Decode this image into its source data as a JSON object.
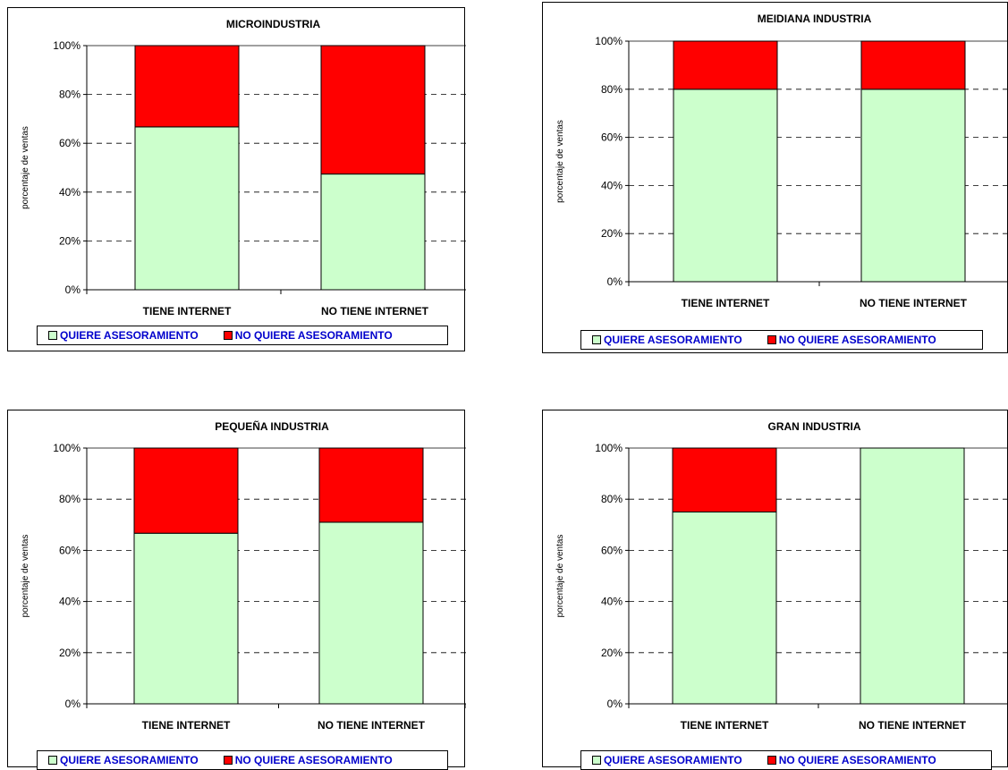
{
  "colors": {
    "quiere": "#ccffcc",
    "no_quiere": "#ff0000",
    "legend_text": "#0000cc"
  },
  "chart_data": [
    {
      "type": "bar",
      "stacked": true,
      "title": "MICROINDUSTRIA",
      "ylabel": "porcentaje de ventas",
      "categories": [
        "TIENE INTERNET",
        "NO TIENE INTERNET"
      ],
      "series": [
        {
          "name": "QUIERE ASESORAMIENTO",
          "values": [
            66.7,
            47.4
          ]
        },
        {
          "name": "NO QUIERE ASESORAMIENTO",
          "values": [
            33.3,
            52.6
          ]
        }
      ],
      "ylim": [
        0,
        100
      ],
      "yticks": [
        "0%",
        "20%",
        "40%",
        "60%",
        "80%",
        "100%"
      ],
      "grid": "dashed-horizontal",
      "legend": "bottom"
    },
    {
      "type": "bar",
      "stacked": true,
      "title": "MEIDIANA INDUSTRIA",
      "ylabel": "porcentaje de ventas",
      "categories": [
        "TIENE INTERNET",
        "NO TIENE INTERNET"
      ],
      "series": [
        {
          "name": "QUIERE ASESORAMIENTO",
          "values": [
            80,
            80
          ]
        },
        {
          "name": "NO QUIERE ASESORAMIENTO",
          "values": [
            20,
            20
          ]
        }
      ],
      "ylim": [
        0,
        100
      ],
      "yticks": [
        "0%",
        "20%",
        "40%",
        "60%",
        "80%",
        "100%"
      ],
      "grid": "dashed-horizontal",
      "legend": "bottom"
    },
    {
      "type": "bar",
      "stacked": true,
      "title": "PEQUEÑA INDUSTRIA",
      "ylabel": "porcentaje de ventas",
      "categories": [
        "TIENE INTERNET",
        "NO TIENE INTERNET"
      ],
      "series": [
        {
          "name": "QUIERE ASESORAMIENTO",
          "values": [
            66.7,
            71.0
          ]
        },
        {
          "name": "NO QUIERE ASESORAMIENTO",
          "values": [
            33.3,
            29.0
          ]
        }
      ],
      "ylim": [
        0,
        100
      ],
      "yticks": [
        "0%",
        "20%",
        "40%",
        "60%",
        "80%",
        "100%"
      ],
      "grid": "dashed-horizontal",
      "legend": "bottom"
    },
    {
      "type": "bar",
      "stacked": true,
      "title": "GRAN INDUSTRIA",
      "ylabel": "porcentaje de ventas",
      "categories": [
        "TIENE INTERNET",
        "NO TIENE INTERNET"
      ],
      "series": [
        {
          "name": "QUIERE ASESORAMIENTO",
          "values": [
            75,
            100
          ]
        },
        {
          "name": "NO QUIERE ASESORAMIENTO",
          "values": [
            25,
            0
          ]
        }
      ],
      "ylim": [
        0,
        100
      ],
      "yticks": [
        "0%",
        "20%",
        "40%",
        "60%",
        "80%",
        "100%"
      ],
      "grid": "dashed-horizontal",
      "legend": "bottom"
    }
  ]
}
